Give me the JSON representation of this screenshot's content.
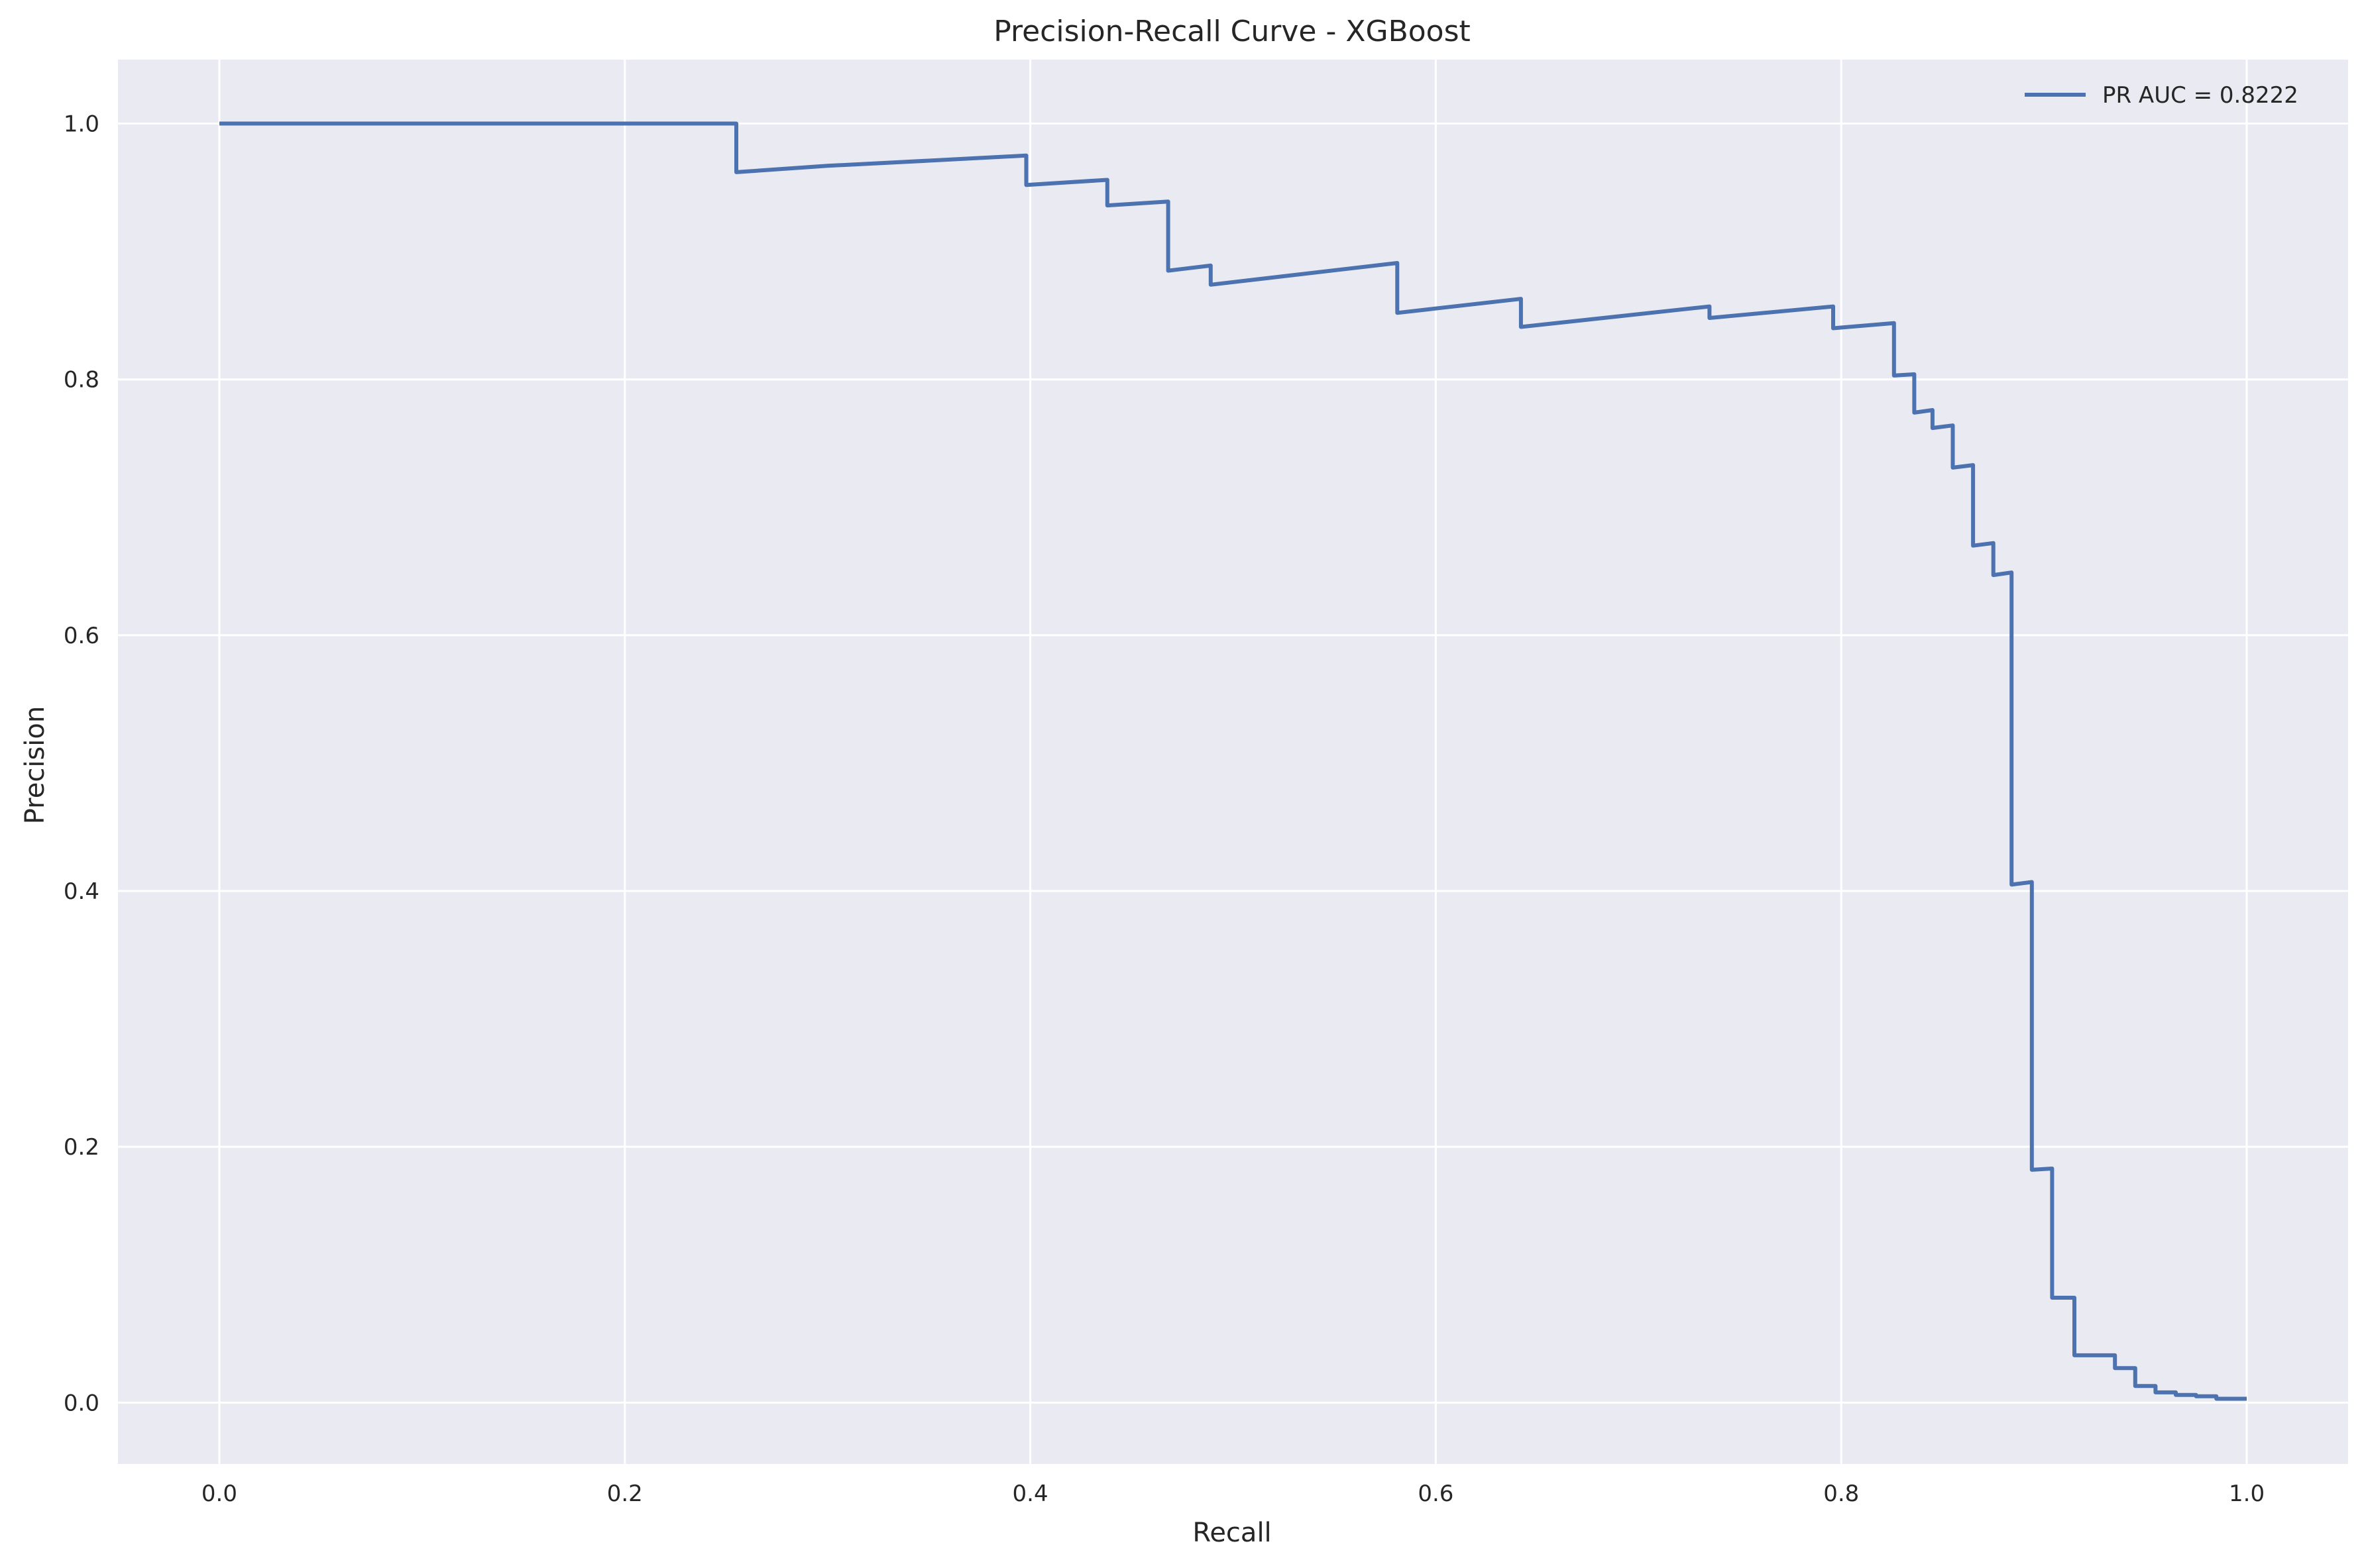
{
  "chart_data": {
    "type": "line",
    "title": "Precision-Recall Curve - XGBoost",
    "xlabel": "Recall",
    "ylabel": "Precision",
    "xlim": [
      -0.05,
      1.05
    ],
    "ylim": [
      -0.048,
      1.05
    ],
    "xticks": [
      0.0,
      0.2,
      0.4,
      0.6,
      0.8,
      1.0
    ],
    "xtick_labels": [
      "0.0",
      "0.2",
      "0.4",
      "0.6",
      "0.8",
      "1.0"
    ],
    "yticks": [
      0.0,
      0.2,
      0.4,
      0.6,
      0.8,
      1.0
    ],
    "ytick_labels": [
      "0.0",
      "0.2",
      "0.4",
      "0.6",
      "0.8",
      "1.0"
    ],
    "grid": true,
    "legend_position": "top-right",
    "colors": {
      "background": "#eaeaf2",
      "grid": "#ffffff",
      "series": "#4c72b0"
    },
    "series": [
      {
        "name": "PR AUC = 0.8222",
        "points": [
          [
            0.0,
            1.0
          ],
          [
            0.255,
            1.0
          ],
          [
            0.255,
            0.962
          ],
          [
            0.3,
            0.967
          ],
          [
            0.35,
            0.971
          ],
          [
            0.398,
            0.975
          ],
          [
            0.398,
            0.952
          ],
          [
            0.438,
            0.956
          ],
          [
            0.438,
            0.936
          ],
          [
            0.468,
            0.939
          ],
          [
            0.468,
            0.885
          ],
          [
            0.489,
            0.889
          ],
          [
            0.489,
            0.874
          ],
          [
            0.581,
            0.891
          ],
          [
            0.581,
            0.852
          ],
          [
            0.642,
            0.863
          ],
          [
            0.642,
            0.841
          ],
          [
            0.735,
            0.857
          ],
          [
            0.735,
            0.848
          ],
          [
            0.796,
            0.857
          ],
          [
            0.796,
            0.84
          ],
          [
            0.826,
            0.844
          ],
          [
            0.826,
            0.803
          ],
          [
            0.836,
            0.804
          ],
          [
            0.836,
            0.774
          ],
          [
            0.845,
            0.776
          ],
          [
            0.845,
            0.762
          ],
          [
            0.855,
            0.764
          ],
          [
            0.855,
            0.731
          ],
          [
            0.865,
            0.733
          ],
          [
            0.865,
            0.67
          ],
          [
            0.875,
            0.672
          ],
          [
            0.875,
            0.647
          ],
          [
            0.884,
            0.649
          ],
          [
            0.884,
            0.405
          ],
          [
            0.894,
            0.407
          ],
          [
            0.894,
            0.182
          ],
          [
            0.904,
            0.183
          ],
          [
            0.904,
            0.082
          ],
          [
            0.915,
            0.082
          ],
          [
            0.915,
            0.037
          ],
          [
            0.935,
            0.037
          ],
          [
            0.935,
            0.027
          ],
          [
            0.945,
            0.027
          ],
          [
            0.945,
            0.013
          ],
          [
            0.955,
            0.013
          ],
          [
            0.955,
            0.008
          ],
          [
            0.965,
            0.008
          ],
          [
            0.965,
            0.006
          ],
          [
            0.975,
            0.006
          ],
          [
            0.975,
            0.005
          ],
          [
            0.985,
            0.005
          ],
          [
            0.985,
            0.003
          ],
          [
            1.0,
            0.003
          ]
        ]
      }
    ]
  }
}
